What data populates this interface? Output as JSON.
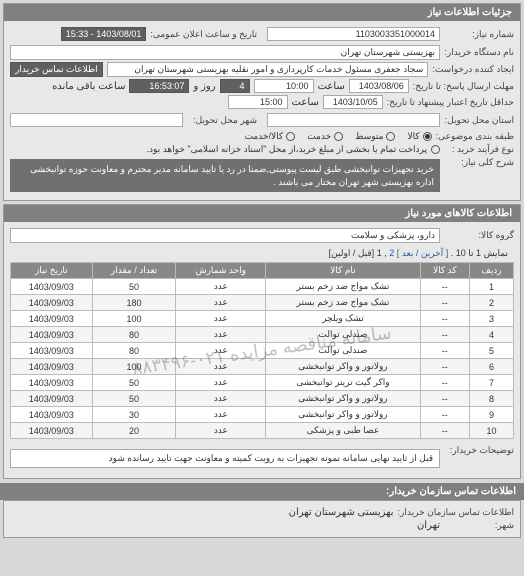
{
  "panel1_title": "جزئیات اطلاعات نیاز",
  "number_label": "شماره نیاز:",
  "number_value": "1103003351000014",
  "public_date_label": "تاریخ و ساعت اعلان عمومی:",
  "public_date_value": "1403/08/01 - 15:33",
  "buyer_label": "نام دستگاه خریدار:",
  "buyer_value": "بهزیستی شهرستان تهران",
  "requester_label": "ایجاد کننده درخواست:",
  "requester_value": "سجاد جعفری مسئول خدمات كارپردازی و امور نقلیه بهزیستی شهرستان تهران",
  "contact_btn": "اطلاعات تماس خریدار",
  "deadline_label": "مهلت ارسال پاسخ: تا تاریخ:",
  "deadline_date": "1403/08/06",
  "time_label": "ساعت",
  "deadline_time": "10:00",
  "days_label": "روز و",
  "days_value": "4",
  "remain_label": "ساعت باقی مانده",
  "remain_value": "16:53:07",
  "validity_label": "حداقل تاریخ اعتبار پیشنهاد تا تاریخ:",
  "validity_date": "1403/10/05",
  "validity_time": "15:00",
  "delivery_city_label": "استان محل تحویل:",
  "delivery_city2_label": "شهر محل تحویل:",
  "pkg_label": "طبقه بندی موضوعی:",
  "pkg_opts": [
    "کالا",
    "متوسط",
    "خدمت",
    "کالا/خدمت"
  ],
  "pkg_selected": 0,
  "process_label": "نوع فرآیند خرید :",
  "process_note": "پرداخت تمام یا بخشی از مبلغ خرید،از محل \"اسناد خزانه اسلامی\" خواهد بود.",
  "desc_label": "شرح کلی نیاز:",
  "desc_text": "خرید تجهیزات توانبخشی طبق لیست پیوستی,ضمنا در رد یا تایید سامانه مدیر محترم و معاونت حوزه توانبخشی اداره بهزیستی شهر تهران مختار می باشند .",
  "panel2_title": "اطلاعات کالاهای مورد نیاز",
  "group_label": "گروه کالا:",
  "group_value": "دارو، پزشکی و سلامت",
  "pager_text_1": "نمایش 1 تا 10 .",
  "pager_links": [
    "[ آخرین / بعد ]",
    "2",
    ",",
    "1",
    "[قبل / اولین]"
  ],
  "columns": [
    "ردیف",
    "کد کالا",
    "نام کالا",
    "واحد شمارش",
    "تعداد / مقدار",
    "تاریخ نیاز"
  ],
  "rows": [
    [
      "1",
      "--",
      "تشک مواج ضد زخم بستر",
      "عدد",
      "50",
      "1403/09/03"
    ],
    [
      "2",
      "--",
      "تشک مواج ضد زخم بستر",
      "عدد",
      "180",
      "1403/09/03"
    ],
    [
      "3",
      "--",
      "تشک ویلچر",
      "عدد",
      "100",
      "1403/09/03"
    ],
    [
      "4",
      "--",
      "صندلی توالت",
      "عدد",
      "80",
      "1403/09/03"
    ],
    [
      "5",
      "--",
      "صندلی توالت",
      "عدد",
      "80",
      "1403/09/03"
    ],
    [
      "6",
      "--",
      "رولاتور و واکر توانبخشی",
      "عدد",
      "100",
      "1403/09/03"
    ],
    [
      "7",
      "--",
      "واکر گیت ترینر توانبخشی",
      "عدد",
      "50",
      "1403/09/03"
    ],
    [
      "8",
      "--",
      "رولاتور و واکر توانبخشی",
      "عدد",
      "50",
      "1403/09/03"
    ],
    [
      "9",
      "--",
      "رولاتور و واکر توانبخشی",
      "عدد",
      "30",
      "1403/09/03"
    ],
    [
      "10",
      "--",
      "عصا طبی و پزشکی",
      "عدد",
      "20",
      "1403/09/03"
    ]
  ],
  "watermark": "سامانه مناقصه مزایده  ۰۲۱-۸۸۳۴۹۶",
  "buyer_note_label": "توضیحات خریدار:",
  "buyer_note": "قبل از تایید نهایی سامانه نمونه تجهیزات به رویت کمیته و معاونت جهت تایید رسانده شود",
  "panel3_title": "اطلاعات تماس سازمان خریدار:",
  "org_label": "اطلاعات تماس سازمان خریدار:",
  "org_value": "بهزیستی شهرستان تهران",
  "city_label": "شهر:",
  "city_value": "تهران"
}
